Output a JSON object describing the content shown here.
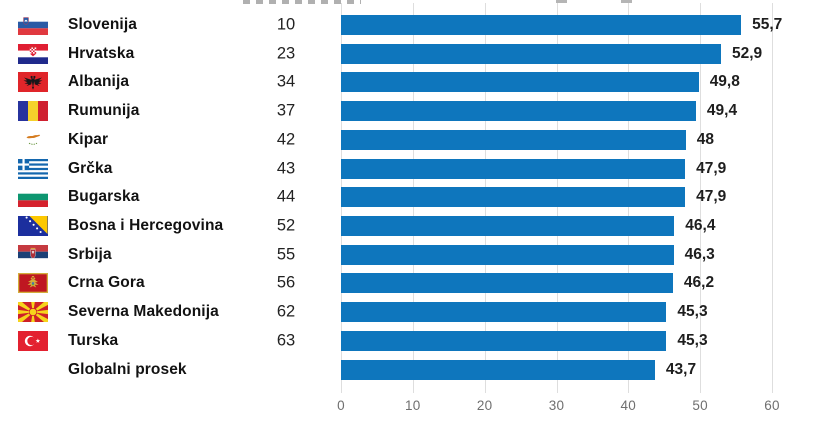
{
  "chart_data": {
    "type": "bar",
    "orientation": "horizontal",
    "bar_color": "#0e76bd",
    "grid": true,
    "grid_color": "#dedede",
    "xlim": [
      0,
      62.5
    ],
    "x_ticks": [
      "0",
      "10",
      "20",
      "30",
      "40",
      "50",
      "60"
    ],
    "decimal_style": "comma",
    "rows": [
      {
        "flag": "slovenia",
        "country": "Slovenija",
        "rank": "10",
        "value": 55.7,
        "value_label": "55,7"
      },
      {
        "flag": "croatia",
        "country": "Hrvatska",
        "rank": "23",
        "value": 52.9,
        "value_label": "52,9"
      },
      {
        "flag": "albania",
        "country": "Albanija",
        "rank": "34",
        "value": 49.8,
        "value_label": "49,8"
      },
      {
        "flag": "romania",
        "country": "Rumunija",
        "rank": "37",
        "value": 49.4,
        "value_label": "49,4"
      },
      {
        "flag": "cyprus",
        "country": "Kipar",
        "rank": "42",
        "value": 48,
        "value_label": "48"
      },
      {
        "flag": "greece",
        "country": "Grčka",
        "rank": "43",
        "value": 47.9,
        "value_label": "47,9"
      },
      {
        "flag": "bulgaria",
        "country": "Bugarska",
        "rank": "44",
        "value": 47.9,
        "value_label": "47,9"
      },
      {
        "flag": "bosnia",
        "country": "Bosna i Hercegovina",
        "rank": "52",
        "value": 46.4,
        "value_label": "46,4"
      },
      {
        "flag": "serbia",
        "country": "Srbija",
        "rank": "55",
        "value": 46.3,
        "value_label": "46,3"
      },
      {
        "flag": "montenegro",
        "country": "Crna Gora",
        "rank": "56",
        "value": 46.2,
        "value_label": "46,2"
      },
      {
        "flag": "macedonia",
        "country": "Severna Makedonija",
        "rank": "62",
        "value": 45.3,
        "value_label": "45,3"
      },
      {
        "flag": "turkey",
        "country": "Turska",
        "rank": "63",
        "value": 45.3,
        "value_label": "45,3"
      },
      {
        "flag": null,
        "country": "Globalni prosek",
        "rank": "",
        "value": 43.7,
        "value_label": "43,7"
      }
    ]
  }
}
